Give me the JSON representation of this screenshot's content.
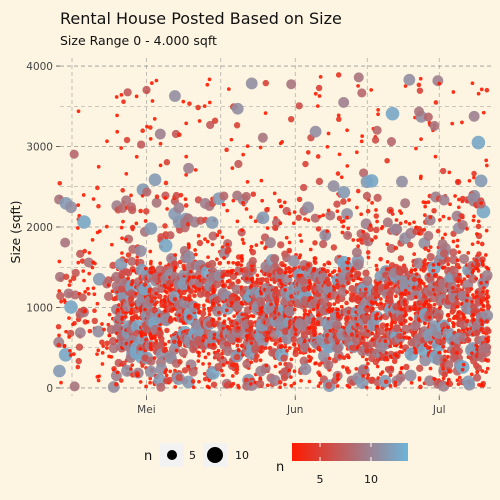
{
  "chart_data": {
    "type": "scatter",
    "title": "Rental House Posted Based on Size",
    "subtitle": "Size Range 0 - 4.000 sqft",
    "xlabel": "",
    "ylabel": "Size (sqft)",
    "ylim": [
      -100,
      4100
    ],
    "y_ticks": [
      0,
      1000,
      2000,
      3000,
      4000
    ],
    "xlim": [
      "2022-04-13",
      "2022-07-12"
    ],
    "x_ticks": [
      {
        "date": "2022-05-01",
        "label": "Mei"
      },
      {
        "date": "2022-06-01",
        "label": "Jun"
      },
      {
        "date": "2022-07-01",
        "label": "Jul"
      }
    ],
    "grid": true,
    "grid_style": "dashed",
    "x_range": [
      "2022-04-13",
      "2022-07-11"
    ],
    "y_range": [
      0,
      3900
    ],
    "size_legend": {
      "title": "n",
      "values": [
        5,
        10
      ]
    },
    "color_legend": {
      "title": "n",
      "ticks": [
        5,
        10
      ],
      "low_color": "#ff1a00",
      "high_color": "#6cb4d8"
    },
    "colors": {
      "background": "#fdf5e2",
      "grid": "#999999"
    }
  }
}
